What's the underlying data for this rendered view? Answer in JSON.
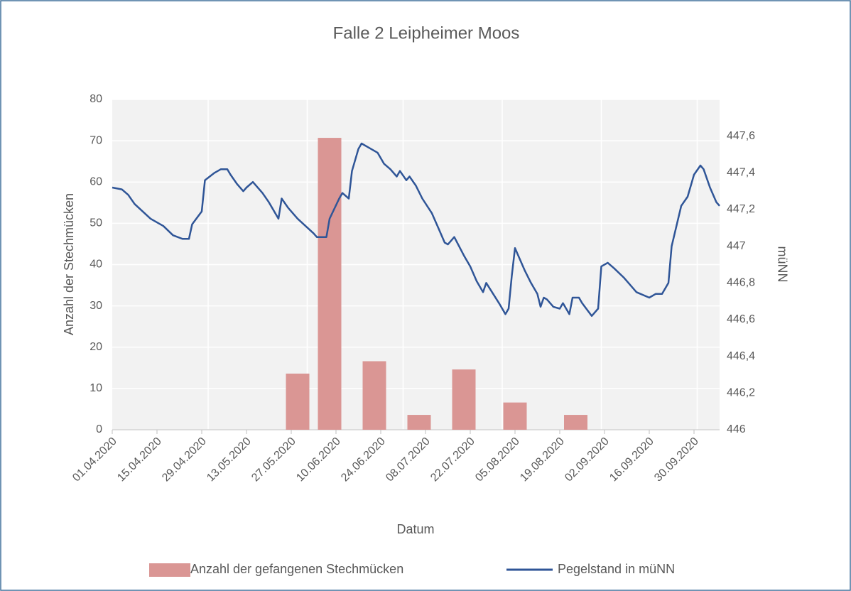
{
  "chart_data": {
    "type": "bar-line",
    "title": "Falle 2 Leipheimer Moos",
    "x_label": "Datum",
    "y_label": "Anzahl der Stechmücken",
    "y2_label": "müNN",
    "xlim": [
      "01.04.2020",
      "08.10.2020"
    ],
    "xticks": [
      "01.04.2020",
      "15.04.2020",
      "29.04.2020",
      "13.05.2020",
      "27.05.2020",
      "10.06.2020",
      "24.06.2020",
      "08.07.2020",
      "22.07.2020",
      "05.08.2020",
      "19.08.2020",
      "02.09.2020",
      "16.09.2020",
      "30.09.2020"
    ],
    "x_gridlines": [
      "01.05.2020",
      "01.06.2020",
      "01.07.2020",
      "01.08.2020",
      "01.09.2020",
      "01.10.2020"
    ],
    "ylim": [
      0,
      80
    ],
    "yticks": [
      0,
      10,
      20,
      30,
      40,
      50,
      60,
      70,
      80
    ],
    "y2lim": [
      446,
      447.8
    ],
    "y2ticks": [
      446,
      {
        "value": 446.2,
        "label": "446,2"
      },
      {
        "value": 446.4,
        "label": "446,4"
      },
      {
        "value": 446.6,
        "label": "446,6"
      },
      {
        "value": 446.8,
        "label": "446,8"
      },
      447,
      {
        "value": 447.2,
        "label": "447,2"
      },
      {
        "value": 447.4,
        "label": "447,4"
      },
      {
        "value": 447.6,
        "label": "447,6"
      }
    ],
    "grid": true,
    "legend": "bottom",
    "series": [
      {
        "name": "Anzahl der gefangenen Stechmücken",
        "type": "bar",
        "color": "#da9694",
        "x": [
          "29.05.2020",
          "08.06.2020",
          "22.06.2020",
          "06.07.2020",
          "20.07.2020",
          "05.08.2020",
          "24.08.2020"
        ],
        "values": [
          13.6,
          70.7,
          16.6,
          3.6,
          14.6,
          6.6,
          3.6
        ]
      },
      {
        "name": "Pegelstand in müNN",
        "type": "line",
        "color": "#2f5597",
        "axis": "y2",
        "x": [
          "01.04.2020",
          "04.04.2020",
          "06.04.2020",
          "08.04.2020",
          "13.04.2020",
          "17.04.2020",
          "20.04.2020",
          "23.04.2020",
          "25.04.2020",
          "26.04.2020",
          "29.04.2020",
          "30.04.2020",
          "03.05.2020",
          "05.05.2020",
          "07.05.2020",
          "08.05.2020",
          "10.05.2020",
          "12.05.2020",
          "13.05.2020",
          "15.05.2020",
          "18.05.2020",
          "20.05.2020",
          "23.05.2020",
          "24.05.2020",
          "26.05.2020",
          "29.05.2020",
          "03.06.2020",
          "04.06.2020",
          "07.06.2020",
          "08.06.2020",
          "11.06.2020",
          "12.06.2020",
          "14.06.2020",
          "15.06.2020",
          "17.06.2020",
          "18.06.2020",
          "20.06.2020",
          "23.06.2020",
          "25.06.2020",
          "27.06.2020",
          "29.06.2020",
          "30.06.2020",
          "02.07.2020",
          "03.07.2020",
          "05.07.2020",
          "07.07.2020",
          "10.07.2020",
          "12.07.2020",
          "14.07.2020",
          "15.07.2020",
          "17.07.2020",
          "20.07.2020",
          "22.07.2020",
          "24.07.2020",
          "26.07.2020",
          "27.07.2020",
          "31.07.2020",
          "02.08.2020",
          "03.08.2020",
          "04.08.2020",
          "05.08.2020",
          "06.08.2020",
          "08.08.2020",
          "10.08.2020",
          "12.08.2020",
          "13.08.2020",
          "14.08.2020",
          "15.08.2020",
          "17.08.2020",
          "19.08.2020",
          "20.08.2020",
          "22.08.2020",
          "23.08.2020",
          "25.08.2020",
          "26.08.2020",
          "29.08.2020",
          "31.08.2020",
          "01.09.2020",
          "03.09.2020",
          "05.09.2020",
          "08.09.2020",
          "12.09.2020",
          "16.09.2020",
          "18.09.2020",
          "20.09.2020",
          "22.09.2020",
          "23.09.2020",
          "26.09.2020",
          "28.09.2020",
          "30.09.2020",
          "02.10.2020",
          "03.10.2020",
          "05.10.2020",
          "07.10.2020",
          "08.10.2020"
        ],
        "values": [
          447.32,
          447.31,
          447.28,
          447.23,
          447.15,
          447.11,
          447.06,
          447.04,
          447.04,
          447.12,
          447.19,
          447.36,
          447.4,
          447.42,
          447.42,
          447.39,
          447.34,
          447.3,
          447.32,
          447.35,
          447.29,
          447.24,
          447.15,
          447.26,
          447.21,
          447.15,
          447.07,
          447.05,
          447.05,
          447.15,
          447.26,
          447.29,
          447.26,
          447.41,
          447.53,
          447.56,
          447.54,
          447.51,
          447.45,
          447.42,
          447.38,
          447.41,
          447.36,
          447.38,
          447.33,
          447.26,
          447.18,
          447.1,
          447.02,
          447.01,
          447.05,
          446.95,
          446.89,
          446.81,
          446.75,
          446.8,
          446.69,
          446.63,
          446.66,
          446.84,
          446.99,
          446.95,
          446.87,
          446.8,
          446.74,
          446.67,
          446.72,
          446.71,
          446.67,
          446.66,
          446.69,
          446.63,
          446.72,
          446.72,
          446.69,
          446.62,
          446.66,
          446.89,
          446.91,
          446.88,
          446.83,
          446.75,
          446.72,
          446.74,
          446.74,
          446.8,
          447.0,
          447.22,
          447.27,
          447.39,
          447.44,
          447.42,
          447.32,
          447.24,
          447.22
        ]
      }
    ]
  }
}
